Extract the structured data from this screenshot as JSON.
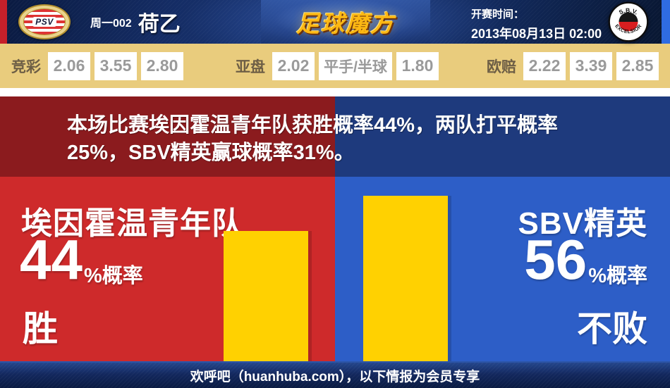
{
  "header": {
    "match_no": "周一002",
    "league": "荷乙",
    "brand": "足球魔方",
    "kickoff_label": "开赛时间：",
    "kickoff_time": "2013年08月13日 02:00",
    "home_badge_text": "PSV",
    "away_badge_top": "S.B.V.",
    "away_badge_name": "EXCELSIOR"
  },
  "odds": {
    "groups": [
      {
        "label": "竞彩",
        "values": [
          "2.06",
          "3.55",
          "2.80"
        ]
      },
      {
        "label": "亚盘",
        "values": [
          "2.02",
          "平手/半球",
          "1.80"
        ]
      },
      {
        "label": "欧赔",
        "values": [
          "2.22",
          "3.39",
          "2.85"
        ]
      }
    ]
  },
  "analysis": {
    "line1": "本场比赛埃因霍温青年队获胜概率44%，两队打平概率",
    "line2": "25%，SBV精英赢球概率31%。"
  },
  "panels": {
    "home": {
      "team": "埃因霍温青年队",
      "percent": "44",
      "suffix": "%概率",
      "outcome": "胜"
    },
    "away": {
      "team": "SBV精英",
      "percent": "56",
      "suffix": "%概率",
      "outcome": "不败"
    }
  },
  "chart_data": {
    "type": "bar",
    "categories": [
      "埃因霍温青年队",
      "SBV精英"
    ],
    "values": [
      44,
      56
    ],
    "value_unit": "%概率",
    "annotations": [
      "胜",
      "不败"
    ],
    "bar_color": "#ffd101",
    "ylim": [
      0,
      62.4
    ]
  },
  "footer": {
    "text": "欢呼吧（huanhuba.com），以下情报为会员专享"
  },
  "colors": {
    "home_red": "#ce2a2b",
    "away_blue": "#2d5ec7",
    "banner_red": "#8b1b1e",
    "banner_blue": "#1e3a7d",
    "bar_yellow": "#ffd101",
    "odds_tan": "#e9cc7d",
    "header_navy": "#132a60"
  }
}
